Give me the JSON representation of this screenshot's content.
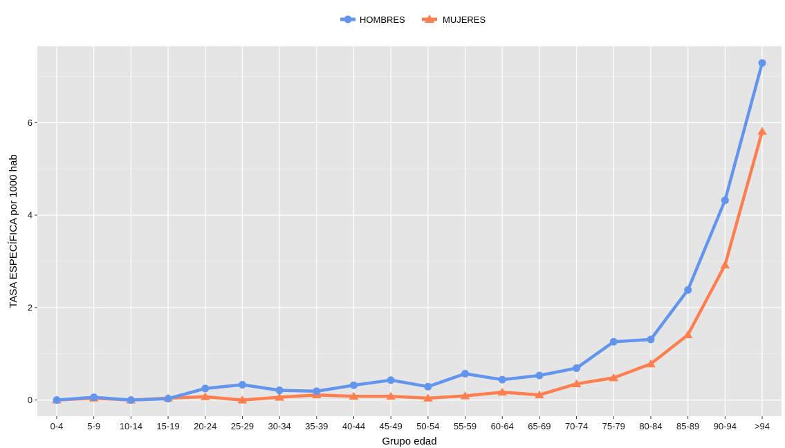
{
  "chart_data": {
    "type": "line",
    "xlabel": "Grupo edad",
    "ylabel": "TASA ESPECÍFICA por 1000 hab",
    "categories": [
      "0-4",
      "5-9",
      "10-14",
      "15-19",
      "20-24",
      "25-29",
      "30-34",
      "35-39",
      "40-44",
      "45-49",
      "50-54",
      "55-59",
      "60-64",
      "65-69",
      "70-74",
      "75-79",
      "80-84",
      "85-89",
      "90-94",
      ">94"
    ],
    "ylim": [
      -0.35,
      7.65
    ],
    "yticks": [
      0,
      2,
      4,
      6
    ],
    "grid": true,
    "legend_position": "top",
    "series": [
      {
        "name": "HOMBRES",
        "color": "#6495ED",
        "marker": "circle",
        "values": [
          0.0,
          0.06,
          0.0,
          0.03,
          0.25,
          0.33,
          0.21,
          0.19,
          0.32,
          0.43,
          0.29,
          0.57,
          0.44,
          0.53,
          0.69,
          1.26,
          1.31,
          2.38,
          4.32,
          7.29
        ]
      },
      {
        "name": "MUJERES",
        "color": "#FF7F50",
        "marker": "triangle",
        "values": [
          0.0,
          0.04,
          0.0,
          0.04,
          0.07,
          0.0,
          0.06,
          0.11,
          0.08,
          0.08,
          0.04,
          0.09,
          0.17,
          0.11,
          0.35,
          0.48,
          0.78,
          1.41,
          2.92,
          5.81
        ]
      }
    ]
  }
}
